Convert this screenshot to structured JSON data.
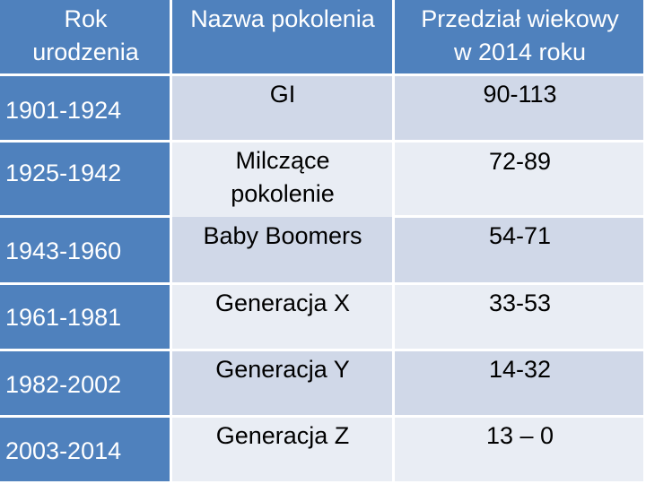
{
  "table": {
    "headers": {
      "birth_year": [
        "Rok",
        "urodzenia"
      ],
      "generation_name": "Nazwa pokolenia",
      "age_range": [
        "Przedział wiekowy",
        "w 2014 roku"
      ]
    },
    "rows": [
      {
        "years": "1901-1924",
        "name": "GI",
        "age": "90-113"
      },
      {
        "years": "1925-1942",
        "name": [
          "Milczące",
          "pokolenie"
        ],
        "age": "72-89"
      },
      {
        "years": "1943-1960",
        "name": "Baby Boomers",
        "age": "54-71"
      },
      {
        "years": "1961-1981",
        "name": "Generacja X",
        "age": "33-53"
      },
      {
        "years": "1982-2002",
        "name": "Generacja Y",
        "age": "14-32"
      },
      {
        "years": "2003-2014",
        "name": "Generacja Z",
        "age": "13 – 0"
      }
    ]
  },
  "colors": {
    "header": "#4f81bd",
    "band_dark": "#d0d8e8",
    "band_light": "#e9edf4",
    "header_text": "#ffffff",
    "body_text": "#000000"
  }
}
